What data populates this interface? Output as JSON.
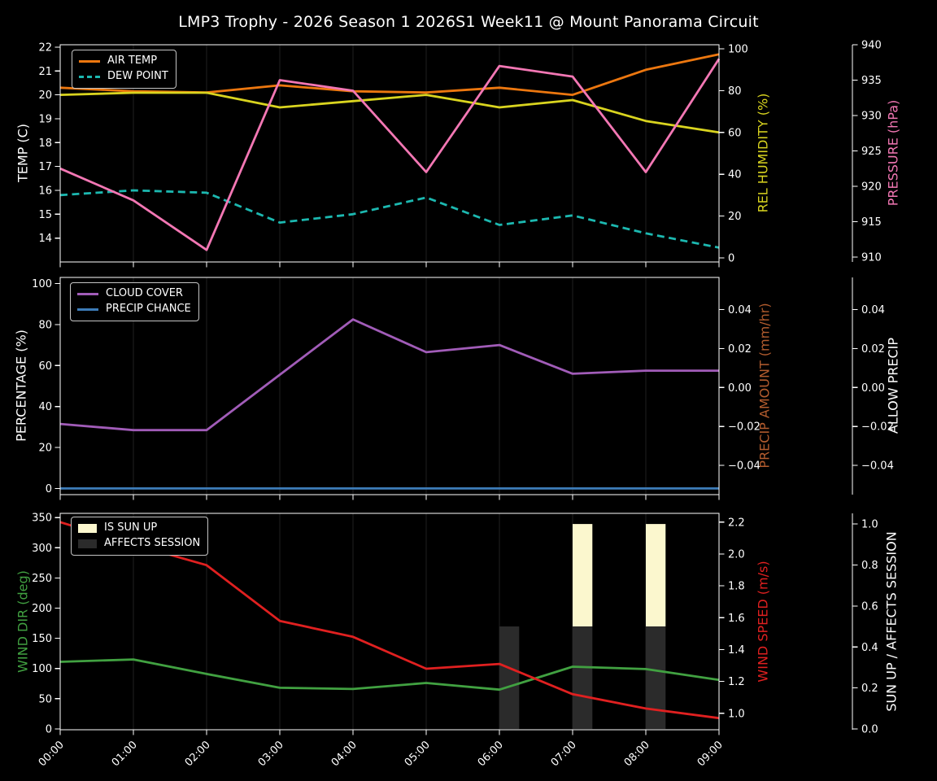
{
  "title": "LMP3 Trophy - 2026 Season 1 2026S1 Week11 @ Mount Panorama Circuit",
  "x_axis": {
    "labels": [
      "00:00",
      "01:00",
      "02:00",
      "03:00",
      "04:00",
      "05:00",
      "06:00",
      "07:00",
      "08:00",
      "09:00"
    ],
    "tick_rotation_deg": 45
  },
  "colors": {
    "background": "#000000",
    "foreground": "#ffffff",
    "grid": "#212121",
    "legend_border": "#c4c4c4"
  },
  "chart_data": [
    {
      "type": "line",
      "panel": "temperature",
      "categories": [
        "00:00",
        "01:00",
        "02:00",
        "03:00",
        "04:00",
        "05:00",
        "06:00",
        "07:00",
        "08:00",
        "09:00"
      ],
      "axes": {
        "left": {
          "label": "TEMP (C)",
          "color": "#ffffff",
          "ylim": [
            13.0,
            22.1
          ],
          "tick_values": [
            14,
            15,
            16,
            17,
            18,
            19,
            20,
            21,
            22
          ],
          "tick_labels": [
            "14",
            "15",
            "16",
            "17",
            "18",
            "19",
            "20",
            "21",
            "22"
          ]
        },
        "right_inner": {
          "label": "REL HUMIDITY (%)",
          "color": "#d9d41f",
          "ylim": [
            -2,
            102
          ],
          "tick_values": [
            0,
            20,
            40,
            60,
            80,
            100
          ],
          "tick_labels": [
            "0",
            "20",
            "40",
            "60",
            "80",
            "100"
          ]
        },
        "right_outer": {
          "label": "PRESSURE (hPa)",
          "color": "#f377b4",
          "ylim": [
            909.3,
            940.0
          ],
          "tick_values": [
            910,
            915,
            920,
            925,
            930,
            935,
            940
          ],
          "tick_labels": [
            "910",
            "915",
            "920",
            "925",
            "930",
            "935",
            "940"
          ]
        }
      },
      "series": [
        {
          "name": "AIR TEMP",
          "axis": "left",
          "color": "#ec770f",
          "line_style": "solid",
          "values": [
            20.3,
            20.15,
            20.1,
            20.4,
            20.15,
            20.1,
            20.3,
            20.0,
            21.05,
            21.7
          ]
        },
        {
          "name": "DEW POINT",
          "axis": "left",
          "color": "#1cb8b0",
          "line_style": "dashed",
          "values": [
            15.8,
            16.0,
            15.9,
            14.65,
            15.0,
            15.7,
            14.55,
            14.95,
            14.2,
            13.6
          ]
        },
        {
          "name": "REL HUMIDITY",
          "axis": "right_inner",
          "color": "#d9d41f",
          "line_style": "solid",
          "values": [
            78,
            79,
            79,
            72,
            75,
            78,
            72,
            75.5,
            65.5,
            60
          ]
        },
        {
          "name": "PRESSURE",
          "axis": "right_outer",
          "color": "#f377b4",
          "line_style": "solid",
          "values": [
            922.5,
            918,
            911,
            935,
            933.5,
            922,
            937,
            935.5,
            922,
            938
          ]
        }
      ],
      "legend": {
        "position": "upper-left",
        "entries": [
          "AIR TEMP",
          "DEW POINT"
        ]
      }
    },
    {
      "type": "line",
      "panel": "precipitation",
      "categories": [
        "00:00",
        "01:00",
        "02:00",
        "03:00",
        "04:00",
        "05:00",
        "06:00",
        "07:00",
        "08:00",
        "09:00"
      ],
      "axes": {
        "left": {
          "label": "PERCENTAGE (%)",
          "color": "#ffffff",
          "ylim": [
            -3,
            103
          ],
          "tick_values": [
            0,
            20,
            40,
            60,
            80,
            100
          ],
          "tick_labels": [
            "0",
            "20",
            "40",
            "60",
            "80",
            "100"
          ]
        },
        "right_inner": {
          "label": "PRECIP AMOUNT (mm/hr)",
          "color": "#b35c2e",
          "ylim": [
            -0.055,
            0.0565
          ],
          "tick_values": [
            -0.04,
            -0.02,
            0,
            0.02,
            0.04
          ],
          "tick_labels": [
            "−0.04",
            "−0.02",
            "0.00",
            "0.02",
            "0.04"
          ]
        },
        "right_outer": {
          "label": "ALLOW PRECIP",
          "color": "#ffffff",
          "ylim": [
            -0.055,
            0.0565
          ],
          "tick_values": [
            -0.04,
            -0.02,
            0,
            0.02,
            0.04
          ],
          "tick_labels": [
            "−0.04",
            "−0.02",
            "0.00",
            "0.02",
            "0.04"
          ]
        }
      },
      "series": [
        {
          "name": "CLOUD COVER",
          "axis": "left",
          "color": "#a15cb8",
          "line_style": "solid",
          "values": [
            31.5,
            28.5,
            28.5,
            55.5,
            82.5,
            66.5,
            70,
            56,
            57.5,
            57.5
          ]
        },
        {
          "name": "PRECIP CHANCE",
          "axis": "left",
          "color": "#3d7cb8",
          "line_style": "solid",
          "values": [
            0,
            0,
            0,
            0,
            0,
            0,
            0,
            0,
            0,
            0
          ]
        }
      ],
      "legend": {
        "position": "upper-left",
        "entries": [
          "CLOUD COVER",
          "PRECIP CHANCE"
        ]
      }
    },
    {
      "type": "line",
      "panel": "wind",
      "categories": [
        "00:00",
        "01:00",
        "02:00",
        "03:00",
        "04:00",
        "05:00",
        "06:00",
        "07:00",
        "08:00",
        "09:00"
      ],
      "axes": {
        "left": {
          "label": "WIND DIR (deg)",
          "color": "#41a141",
          "ylim": [
            -1.5,
            357
          ],
          "tick_values": [
            0,
            50,
            100,
            150,
            200,
            250,
            300,
            350
          ],
          "tick_labels": [
            "0",
            "50",
            "100",
            "150",
            "200",
            "250",
            "300",
            "350"
          ]
        },
        "right_inner": {
          "label": "WIND SPEED (m/s)",
          "color": "#e02020",
          "ylim": [
            0.897,
            2.255
          ],
          "tick_values": [
            1.0,
            1.2,
            1.4,
            1.6,
            1.8,
            2.0,
            2.2
          ],
          "tick_labels": [
            "1.0",
            "1.2",
            "1.4",
            "1.6",
            "1.8",
            "2.0",
            "2.2"
          ]
        },
        "right_outer": {
          "label": "SUN UP / AFFECTS SESSION",
          "color": "#ffffff",
          "ylim": [
            -0.004,
            1.052
          ],
          "tick_values": [
            0.0,
            0.2,
            0.4,
            0.6,
            0.8,
            1.0
          ],
          "tick_labels": [
            "0.0",
            "0.2",
            "0.4",
            "0.6",
            "0.8",
            "1.0"
          ]
        }
      },
      "series": [
        {
          "name": "WIND DIR",
          "axis": "left",
          "color": "#41a141",
          "line_style": "solid",
          "values": [
            111,
            115,
            91,
            68,
            66,
            76,
            65,
            103,
            99,
            81
          ]
        },
        {
          "name": "WIND SPEED",
          "axis": "right_inner",
          "color": "#e02020",
          "line_style": "solid",
          "values": [
            2.2,
            2.06,
            1.93,
            1.58,
            1.48,
            1.28,
            1.31,
            1.12,
            1.03,
            0.97
          ]
        }
      ],
      "bars": [
        {
          "name": "IS SUN UP",
          "axis": "right_outer",
          "color": "#fbf7ce",
          "at_hours": [
            "07:00",
            "08:00"
          ],
          "y_from": 0.5,
          "y_to": 1.0,
          "width_hours": 0.27
        },
        {
          "name": "AFFECTS SESSION",
          "axis": "right_outer",
          "color": "#2b2b2b",
          "at_hours": [
            "06:00",
            "07:00",
            "08:00"
          ],
          "y_from": 0.0,
          "y_to": 0.5,
          "width_hours": 0.27
        }
      ],
      "legend": {
        "position": "upper-left",
        "entries": [
          "IS SUN UP",
          "AFFECTS SESSION"
        ]
      }
    }
  ]
}
